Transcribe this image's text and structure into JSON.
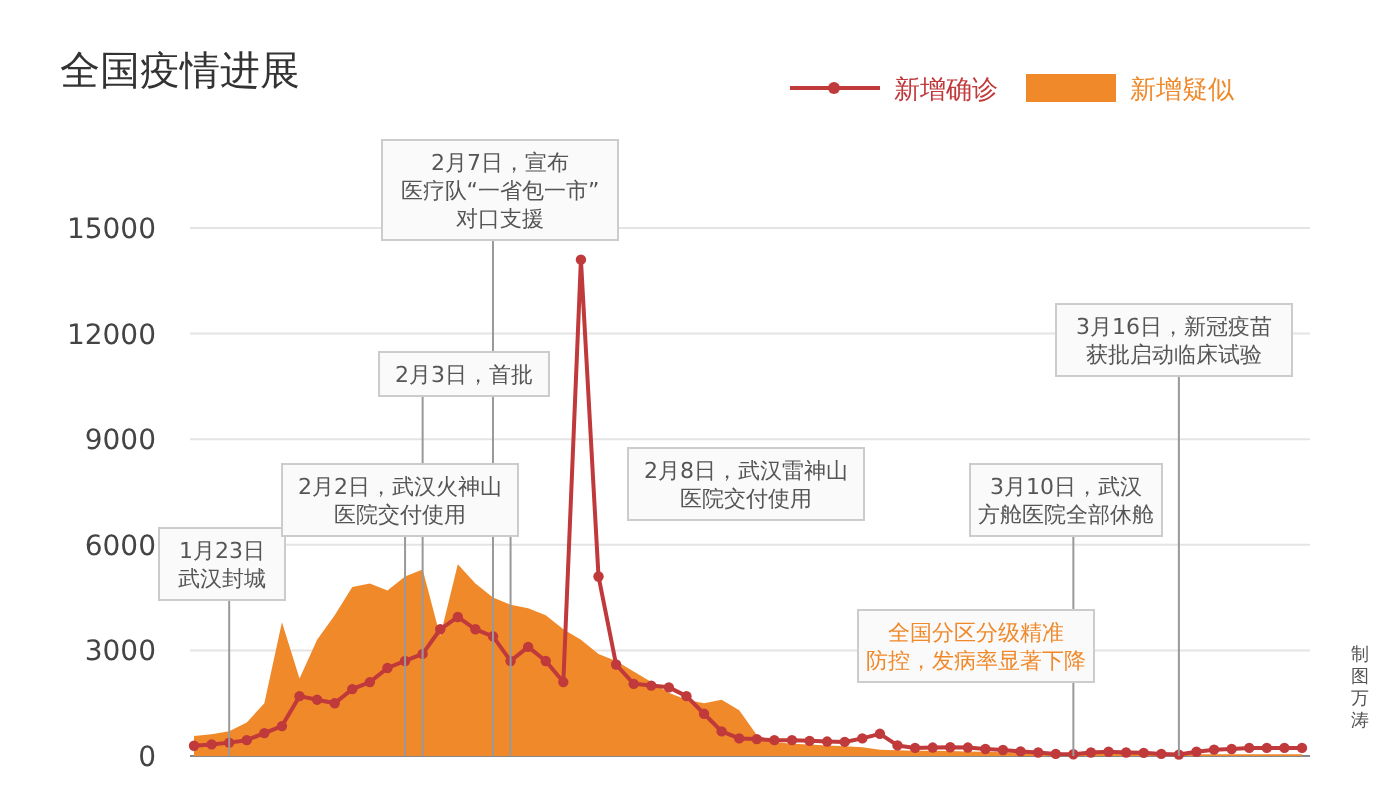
{
  "chart_data": {
    "type": "area",
    "title": "全国疫情进展",
    "categories": [
      null,
      null,
      null,
      null,
      null,
      null,
      null,
      null,
      null,
      null,
      null,
      null,
      null,
      null,
      null,
      null,
      null,
      null,
      null,
      null,
      null,
      null,
      null,
      null,
      null,
      null,
      null,
      null,
      null,
      null,
      null,
      null,
      null,
      null,
      null,
      null,
      null,
      null,
      null,
      null,
      null,
      null,
      null,
      null,
      null,
      null,
      null,
      null,
      null,
      null,
      null,
      null,
      null,
      null,
      null,
      null,
      null,
      null,
      null,
      null,
      null,
      null,
      null,
      null
    ],
    "series": [
      {
        "name": "新增疑似",
        "color": "#f0892a",
        "values": [
          570,
          620,
          700,
          950,
          1500,
          3800,
          2200,
          3300,
          4000,
          4800,
          4900,
          4700,
          5100,
          5300,
          3400,
          5450,
          4900,
          4500,
          4300,
          4200,
          4000,
          3600,
          3300,
          2900,
          2700,
          2400,
          2100,
          1800,
          1600,
          1500,
          1600,
          1300,
          600,
          400,
          350,
          330,
          300,
          280,
          250,
          180,
          160,
          150,
          150,
          140,
          130,
          120,
          110,
          100,
          100,
          90,
          80,
          80,
          70,
          70,
          60,
          60,
          60,
          50,
          50,
          50,
          50,
          50,
          50,
          50
        ]
      },
      {
        "name": "新增确诊",
        "type": "line",
        "color": "#c0393b",
        "marker": "circle",
        "values": [
          290,
          330,
          380,
          450,
          650,
          850,
          1700,
          1600,
          1500,
          1900,
          2100,
          2500,
          2700,
          2900,
          3600,
          3950,
          3600,
          3400,
          2700,
          3100,
          2700,
          2100,
          14100,
          5100,
          2600,
          2050,
          2000,
          1950,
          1700,
          1200,
          700,
          500,
          480,
          450,
          450,
          430,
          410,
          400,
          500,
          630,
          300,
          230,
          240,
          250,
          240,
          200,
          170,
          130,
          100,
          60,
          50,
          100,
          120,
          100,
          90,
          60,
          40,
          120,
          180,
          200,
          230,
          230,
          230,
          230
        ]
      }
    ],
    "ylim": [
      0,
      15000
    ],
    "yticks": [
      0,
      3000,
      6000,
      9000,
      12000,
      15000
    ],
    "grid": "y",
    "legend": "top right",
    "annotations": [
      "1月23日武汉封城",
      "2月2日，武汉火神山医院交付使用",
      "2月3日，首批",
      "2月7日，宣布医疗队“一省包一市”对口支援",
      "2月8日，武汉雷神山医院交付使用",
      "3月10日，武汉方舱医院全部休舱",
      "3月16日，新冠疫苗获批启动临床试验",
      "全国分区分级精准防控，发病率显著下降",
      "制图万涛"
    ]
  }
}
